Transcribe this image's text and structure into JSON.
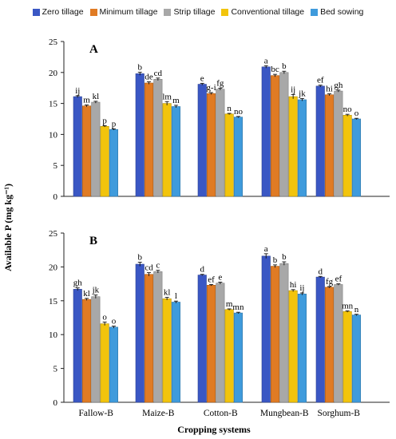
{
  "figure": {
    "ylabel": "Available P (mg kg⁻¹)",
    "xlabel": "Cropping systems"
  },
  "legend": [
    {
      "name": "Zero tillage",
      "color": "#3a57c4"
    },
    {
      "name": "Minimum tillage",
      "color": "#e07b24"
    },
    {
      "name": "Strip tillage",
      "color": "#a8a8a8"
    },
    {
      "name": "Conventional tillage",
      "color": "#f2c40c"
    },
    {
      "name": "Bed sowing",
      "color": "#3f9bdc"
    }
  ],
  "chart_data": [
    {
      "type": "bar",
      "panel": "A",
      "ylim": [
        0,
        25
      ],
      "yticks": [
        0,
        5,
        10,
        15,
        20,
        25
      ],
      "categories": [
        "Fallow-B",
        "Maize-B",
        "Cotton-B",
        "Mungbean-B",
        "Sorghum-B"
      ],
      "series": [
        {
          "name": "Zero tillage",
          "values": [
            16.1,
            19.8,
            18.1,
            20.9,
            17.8
          ],
          "errors": [
            0.15,
            0.25,
            0.15,
            0.2,
            0.15
          ],
          "labels": [
            "ij",
            "b",
            "e",
            "a",
            "ef"
          ]
        },
        {
          "name": "Minimum tillage",
          "values": [
            14.6,
            18.3,
            16.6,
            19.5,
            16.4
          ],
          "errors": [
            0.15,
            0.2,
            0.15,
            0.2,
            0.15
          ],
          "labels": [
            "m",
            "de",
            "g-i",
            "bc",
            "hi"
          ]
        },
        {
          "name": "Strip tillage",
          "values": [
            15.2,
            18.9,
            17.3,
            20.0,
            17.0
          ],
          "errors": [
            0.15,
            0.2,
            0.15,
            0.2,
            0.15
          ],
          "labels": [
            "kl",
            "cd",
            "fg",
            "b",
            "gh"
          ]
        },
        {
          "name": "Conventional tillage",
          "values": [
            11.3,
            15.0,
            13.3,
            16.1,
            13.1
          ],
          "errors": [
            0.1,
            0.3,
            0.1,
            0.35,
            0.15
          ],
          "labels": [
            "p",
            "lm",
            "n",
            "ij",
            "no"
          ]
        },
        {
          "name": "Bed sowing",
          "values": [
            10.8,
            14.5,
            12.8,
            15.6,
            12.5
          ],
          "errors": [
            0.1,
            0.2,
            0.1,
            0.2,
            0.1
          ],
          "labels": [
            "p",
            "m",
            "no",
            "jk",
            "o"
          ]
        }
      ]
    },
    {
      "type": "bar",
      "panel": "B",
      "ylim": [
        0,
        25
      ],
      "yticks": [
        0,
        5,
        10,
        15,
        20,
        25
      ],
      "categories": [
        "Fallow-B",
        "Maize-B",
        "Cotton-B",
        "Mungbean-B",
        "Sorghum-B"
      ],
      "series": [
        {
          "name": "Zero tillage",
          "values": [
            16.7,
            20.4,
            18.8,
            21.6,
            18.5
          ],
          "errors": [
            0.2,
            0.3,
            0.1,
            0.35,
            0.1
          ],
          "labels": [
            "gh",
            "b",
            "d",
            "a",
            "d"
          ]
        },
        {
          "name": "Minimum tillage",
          "values": [
            15.2,
            18.9,
            17.3,
            20.1,
            17.0
          ],
          "errors": [
            0.15,
            0.25,
            0.1,
            0.2,
            0.1
          ],
          "labels": [
            "kl",
            "cd",
            "ef",
            "b",
            "fg"
          ]
        },
        {
          "name": "Strip tillage",
          "values": [
            15.6,
            19.3,
            17.6,
            20.5,
            17.4
          ],
          "errors": [
            0.25,
            0.2,
            0.15,
            0.25,
            0.1
          ],
          "labels": [
            "jk",
            "c",
            "e",
            "b",
            "ef"
          ]
        },
        {
          "name": "Conventional tillage",
          "values": [
            11.6,
            15.3,
            13.7,
            16.5,
            13.4
          ],
          "errors": [
            0.25,
            0.2,
            0.1,
            0.15,
            0.1
          ],
          "labels": [
            "o",
            "kl",
            "m",
            "hi",
            "mn"
          ]
        },
        {
          "name": "Bed sowing",
          "values": [
            11.1,
            14.8,
            13.2,
            16.0,
            12.9
          ],
          "errors": [
            0.15,
            0.15,
            0.1,
            0.15,
            0.1
          ],
          "labels": [
            "o",
            "l",
            "mn",
            "ij",
            "n"
          ]
        }
      ]
    }
  ]
}
